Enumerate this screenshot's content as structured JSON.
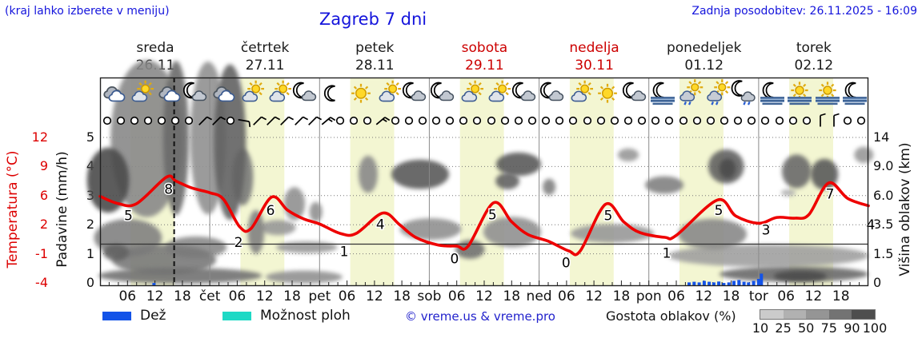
{
  "header": {
    "hint": "(kraj lahko izberete v meniju)",
    "title": "Zagreb 7 dni",
    "updated": "Zadnja posodobitev: 26.11.2025 - 16:09"
  },
  "days": [
    {
      "name": "sreda",
      "date": "26.11",
      "weekend": false
    },
    {
      "name": "četrtek",
      "date": "27.11",
      "weekend": false
    },
    {
      "name": "petek",
      "date": "28.11",
      "weekend": false
    },
    {
      "name": "sobota",
      "date": "29.11",
      "weekend": true
    },
    {
      "name": "nedelja",
      "date": "30.11",
      "weekend": true
    },
    {
      "name": "ponedeljek",
      "date": "01.12",
      "weekend": false
    },
    {
      "name": "torek",
      "date": "02.12",
      "weekend": false
    }
  ],
  "axes": {
    "temp": {
      "title": "Temperatura (°C)",
      "color": "#dd0000",
      "ticks": [
        "12",
        "9",
        "6",
        "2",
        "-1",
        "-4"
      ]
    },
    "precip": {
      "title": "Padavine (mm/h)",
      "ticks": [
        "5",
        "4",
        "3",
        "2",
        "1",
        "0"
      ]
    },
    "cloud_height": {
      "title": "Višina oblakov (km)",
      "ticks": [
        "14",
        "9.0",
        "6.0",
        "3.5",
        "1.5",
        "0"
      ]
    },
    "x_labels": [
      "06",
      "12",
      "18",
      "čet",
      "06",
      "12",
      "18",
      "pet",
      "06",
      "12",
      "18",
      "sob",
      "06",
      "12",
      "18",
      "ned",
      "06",
      "12",
      "18",
      "pon",
      "06",
      "12",
      "18",
      "tor",
      "06",
      "12",
      "18"
    ]
  },
  "legend": {
    "rain_label": "Dež",
    "rain_color": "#1353e8",
    "showers_label": "Možnost ploh",
    "showers_color": "#1ed9c5",
    "copyright": "© vreme.us & vreme.pro",
    "cloud_density_label": "Gostota oblakov (%)",
    "density_labels": [
      "10",
      "25",
      "50",
      "75",
      "90",
      "100"
    ],
    "density_colors": [
      "#cbcbcb",
      "#b1b1b1",
      "#959595",
      "#737373",
      "#4e4e4e"
    ]
  },
  "chart_data": {
    "type": "line",
    "title": "Zagreb 7 dni",
    "x_unit": "hours from sreda 26.11 00:00 (24 h per day, 7 days, axis 0–168)",
    "now_hour": 16.2,
    "daylight_hours": [
      6.7,
      16.3
    ],
    "daylight_band_color": "#f3f6d2",
    "temp_axis_ticks": [
      12,
      9,
      6,
      2,
      -1,
      -4
    ],
    "cloud_km_ticks": [
      14,
      9,
      6,
      3.5,
      1.5,
      0
    ],
    "precip_axis_ticks": [
      5,
      4,
      3,
      2,
      1,
      0
    ],
    "freezing_line_temp": 0,
    "series": [
      {
        "name": "Temperatura (°C)",
        "color": "#ee0000",
        "points": [
          [
            0,
            5.9
          ],
          [
            4,
            4.9
          ],
          [
            8,
            4.9
          ],
          [
            14.5,
            7.9
          ],
          [
            16.6,
            7.5
          ],
          [
            20,
            6.8
          ],
          [
            24,
            6.3
          ],
          [
            27,
            5.5
          ],
          [
            30.5,
            1.8
          ],
          [
            33,
            1.6
          ],
          [
            37.5,
            5.8
          ],
          [
            41,
            4.0
          ],
          [
            44.5,
            2.8
          ],
          [
            48,
            2.1
          ],
          [
            52.5,
            1.1
          ],
          [
            56,
            1.1
          ],
          [
            61.8,
            3.6
          ],
          [
            65.5,
            2.0
          ],
          [
            69,
            0.7
          ],
          [
            74,
            -0.1
          ],
          [
            78,
            -0.2
          ],
          [
            80.5,
            -0.2
          ],
          [
            86,
            5.0
          ],
          [
            90,
            2.4
          ],
          [
            93.5,
            1.0
          ],
          [
            98,
            0.3
          ],
          [
            102.5,
            -0.7
          ],
          [
            105,
            -0.7
          ],
          [
            110.5,
            4.8
          ],
          [
            114.5,
            2.4
          ],
          [
            118,
            1.2
          ],
          [
            123.5,
            0.7
          ],
          [
            126,
            0.9
          ],
          [
            135,
            5.4
          ],
          [
            139,
            3.2
          ],
          [
            144,
            2.2
          ],
          [
            148,
            3.0
          ],
          [
            152,
            2.9
          ],
          [
            155,
            3.4
          ],
          [
            159.3,
            7.3
          ],
          [
            163.5,
            5.6
          ],
          [
            168,
            4.6
          ]
        ]
      }
    ],
    "temp_labels": [
      [
        "5",
        6.2,
        3.3
      ],
      [
        "8",
        15.0,
        6.7
      ],
      [
        "2",
        30.3,
        0.2
      ],
      [
        "6",
        37.3,
        4.0
      ],
      [
        "1",
        53.4,
        -0.75
      ],
      [
        "4",
        61.3,
        2.1
      ],
      [
        "0",
        77.5,
        -1.5
      ],
      [
        "5",
        85.8,
        3.4
      ],
      [
        "0",
        101.9,
        -1.9
      ],
      [
        "5",
        111.1,
        3.3
      ],
      [
        "1",
        123.9,
        -0.9
      ],
      [
        "5",
        135.3,
        4.0
      ],
      [
        "3",
        145.6,
        1.5
      ],
      [
        "7",
        159.6,
        6.2
      ],
      [
        "4",
        168.5,
        2.0
      ]
    ],
    "precipitation": {
      "unit": "mm/h",
      "color": "#1353e8",
      "bars": [
        [
          11.8,
          0.08
        ],
        [
          128.8,
          0.1
        ],
        [
          129.9,
          0.12
        ],
        [
          131.0,
          0.1
        ],
        [
          132.1,
          0.15
        ],
        [
          133.2,
          0.12
        ],
        [
          134.2,
          0.1
        ],
        [
          135.3,
          0.13
        ],
        [
          136.4,
          0.08
        ],
        [
          137.5,
          0.1
        ],
        [
          138.6,
          0.15
        ],
        [
          139.7,
          0.18
        ],
        [
          140.8,
          0.12
        ],
        [
          141.8,
          0.1
        ],
        [
          142.9,
          0.15
        ],
        [
          144.0,
          0.22
        ],
        [
          144.6,
          0.4
        ]
      ]
    },
    "cloud_blobs_h_km_rh_rkm_density": [
      [
        1.75,
        7.6,
        4.6,
        3.6,
        95
      ],
      [
        10.2,
        13.8,
        7.9,
        1.8,
        55
      ],
      [
        16.6,
        13.9,
        2.8,
        1.4,
        75
      ],
      [
        23.6,
        13.9,
        3.9,
        1.2,
        50
      ],
      [
        28.4,
        13.2,
        3.5,
        1.6,
        80
      ],
      [
        31.2,
        7.9,
        2.3,
        3.2,
        65
      ],
      [
        6.1,
        2.6,
        7.4,
        1.3,
        60
      ],
      [
        14,
        1.2,
        11.4,
        0.85,
        65
      ],
      [
        3.5,
        1.6,
        2.8,
        0.5,
        80
      ],
      [
        21,
        1.95,
        6.7,
        0.7,
        55
      ],
      [
        17.5,
        0.37,
        17.9,
        0.45,
        70
      ],
      [
        44.6,
        0.3,
        8.4,
        0.37,
        50
      ],
      [
        45.2,
        1.95,
        6.7,
        0.4,
        45
      ],
      [
        38.9,
        3.3,
        3.9,
        0.55,
        45
      ],
      [
        42.5,
        5.3,
        2.3,
        1.5,
        50
      ],
      [
        34.1,
        3.0,
        1.8,
        1.6,
        60
      ],
      [
        47.2,
        4.6,
        1.4,
        0.85,
        50
      ],
      [
        58.6,
        8.2,
        2.1,
        2.2,
        55
      ],
      [
        70,
        8.2,
        6.3,
        1.7,
        85
      ],
      [
        72.3,
        3.2,
        6.7,
        0.8,
        50
      ],
      [
        91.5,
        9.4,
        4.9,
        1.6,
        85
      ],
      [
        89.1,
        7.5,
        2.6,
        0.85,
        80
      ],
      [
        90.1,
        3.0,
        6.3,
        1.1,
        50
      ],
      [
        98.2,
        6.9,
        1.4,
        0.85,
        60
      ],
      [
        112,
        2.9,
        9.1,
        0.65,
        45
      ],
      [
        115.5,
        11,
        2.3,
        1.1,
        45
      ],
      [
        123.4,
        7.1,
        4.2,
        0.9,
        60
      ],
      [
        136.9,
        9,
        3.9,
        2.2,
        80
      ],
      [
        137.2,
        8.8,
        1.8,
        1.25,
        95
      ],
      [
        133.9,
        2.85,
        7.5,
        1.1,
        55
      ],
      [
        152.3,
        8.5,
        3.2,
        2.05,
        75
      ],
      [
        158.4,
        8.2,
        3,
        1.8,
        85
      ],
      [
        146.1,
        1.4,
        21.9,
        0.65,
        40
      ],
      [
        151.7,
        0.45,
        16.3,
        0.4,
        75
      ],
      [
        153.1,
        0.35,
        5.8,
        0.28,
        95
      ],
      [
        150.5,
        6.3,
        1.6,
        0.35,
        30
      ],
      [
        167,
        11,
        2.1,
        1.4,
        45
      ],
      [
        80.9,
        1.8,
        3.2,
        0.6,
        70
      ]
    ],
    "weather_icons": [
      "cloudy",
      "sun-cloud",
      "cloudy",
      "moon-cloud",
      "cloudy",
      "sun-cloud",
      "sun-cloud",
      "moon-cloud",
      "moon",
      "sun",
      "sun-cloud",
      "moon-cloud",
      "moon-cloud",
      "sun-cloud",
      "sun-cloud",
      "moon-cloud",
      "moon-cloud",
      "sun-cloud",
      "sun",
      "moon-cloud",
      "moon-fog",
      "sun-rain",
      "sun-rain",
      "moon-rain",
      "moon-fog",
      "sun-fog",
      "sun-fog",
      "moon-fog"
    ],
    "wind_3h": [
      "o",
      "o",
      "o",
      "o",
      "o",
      "o",
      "o",
      "1",
      "1",
      "o",
      "2",
      "1",
      "1",
      "1",
      "1",
      "1",
      "3",
      "o",
      "o",
      "o",
      "3",
      "o",
      "o",
      "o",
      "o",
      "o",
      "o",
      "o",
      "o",
      "o",
      "o",
      "o",
      "o",
      "o",
      "o",
      "o",
      "o",
      "o",
      "o",
      "o",
      "o",
      "o",
      "o",
      "o",
      "o",
      "o",
      "o",
      "o",
      "o",
      "o",
      "o",
      "o",
      "4",
      "4",
      "o",
      "o"
    ]
  }
}
